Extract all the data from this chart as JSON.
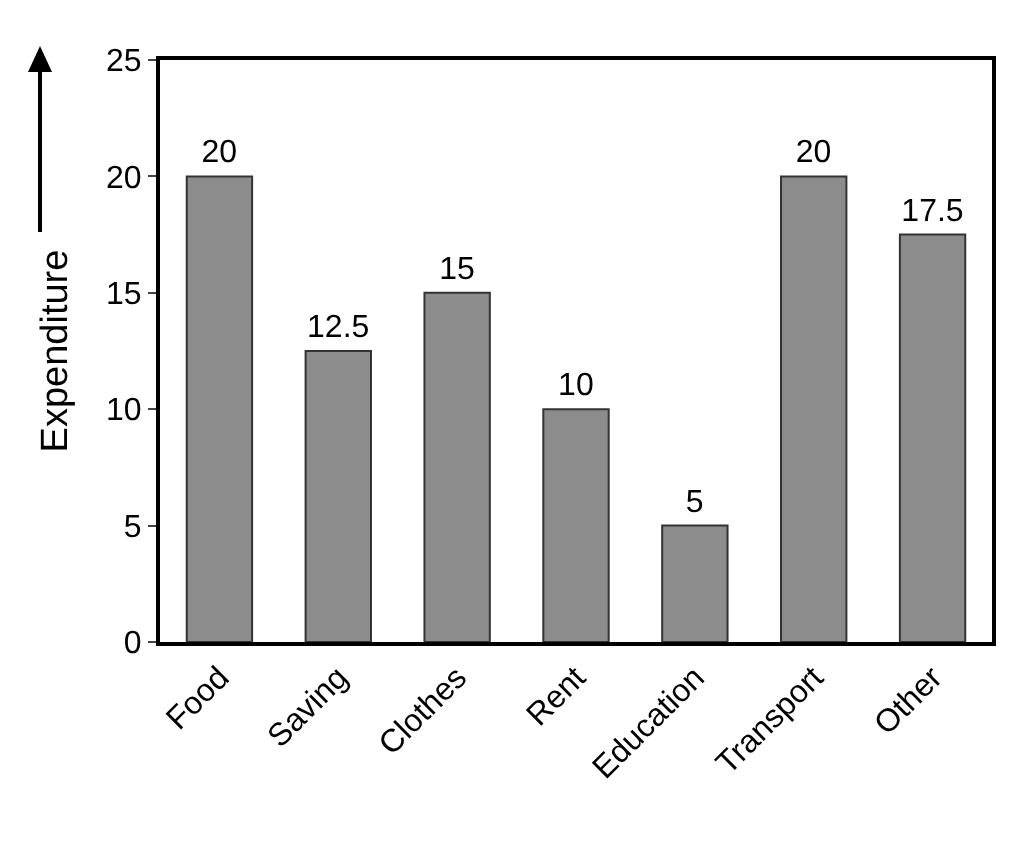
{
  "chart_data": {
    "type": "bar",
    "ylabel": "Expenditure",
    "categories": [
      "Food",
      "Saving",
      "Clothes",
      "Rent",
      "Education",
      "Transport",
      "Other"
    ],
    "values": [
      20,
      12.5,
      15,
      10,
      5,
      20,
      17.5
    ],
    "color": "#8c8c8c",
    "ylim": [
      0,
      25
    ],
    "yticks": [
      0,
      5,
      10,
      15,
      20,
      25
    ],
    "grid": false,
    "data_labels": true,
    "legend": false
  }
}
